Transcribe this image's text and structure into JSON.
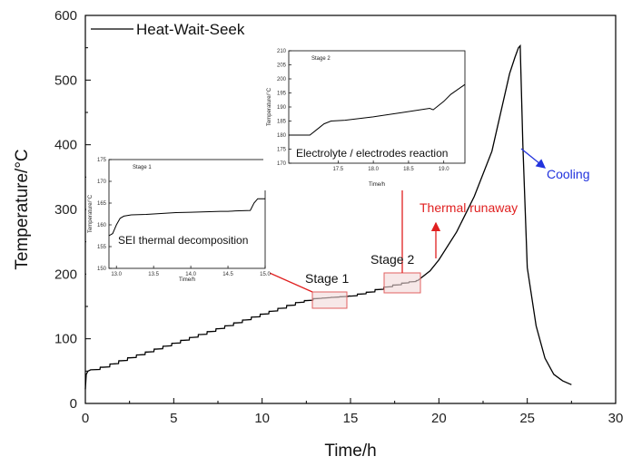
{
  "chart_data": {
    "type": "line",
    "xlabel": "Time/h",
    "ylabel": "Temperature/°C",
    "xlim": [
      0,
      30
    ],
    "ylim": [
      0,
      600
    ],
    "x_ticks": [
      0,
      5,
      10,
      15,
      20,
      25,
      30
    ],
    "y_ticks": [
      0,
      100,
      200,
      300,
      400,
      500,
      600
    ],
    "grid": false,
    "legend_position": "top-left",
    "series": [
      {
        "name": "Heat-Wait-Seek",
        "color": "#000000",
        "x": [
          0,
          0.05,
          0.15,
          0.3,
          1,
          2,
          3,
          4,
          5,
          6,
          7,
          8,
          9,
          10,
          11,
          12,
          13,
          14,
          15,
          16,
          17,
          18,
          18.8,
          19.5,
          20,
          21,
          22,
          23,
          23.5,
          24,
          24.3,
          24.5,
          24.6,
          24.75,
          25,
          25.5,
          26,
          26.5,
          27,
          27.5
        ],
        "y": [
          22,
          45,
          50,
          52,
          56,
          66,
          75,
          84,
          93,
          102,
          111,
          120,
          129,
          138,
          147,
          156,
          162,
          164,
          166,
          172,
          180,
          186,
          190,
          205,
          222,
          265,
          320,
          390,
          450,
          510,
          535,
          550,
          553,
          400,
          210,
          120,
          70,
          45,
          35,
          29
        ]
      }
    ],
    "annotations": {
      "stage1": "Stage 1",
      "stage2": "Stage 2",
      "thermal_runaway": "Thermal runaway",
      "cooling": "Cooling"
    },
    "insets": [
      {
        "title": "Stage 1",
        "label": "SEI thermal decomposition",
        "xlabel": "Time/h",
        "ylabel": "Temperature/°C",
        "xlim": [
          12.9,
          15.0
        ],
        "ylim": [
          150,
          175
        ],
        "x_ticks": [
          "13.0",
          "13.5",
          "14.0",
          "14.5",
          "15.0"
        ],
        "y_ticks": [
          "150",
          "155",
          "160",
          "165",
          "170",
          "175"
        ],
        "x": [
          12.9,
          12.95,
          13.0,
          13.05,
          13.1,
          13.2,
          13.4,
          13.6,
          13.8,
          14.0,
          14.2,
          14.4,
          14.5,
          14.6,
          14.8,
          14.85,
          14.9,
          15.0
        ],
        "y": [
          157.5,
          158,
          160,
          161.5,
          162,
          162.3,
          162.4,
          162.6,
          162.8,
          162.9,
          163.0,
          163.1,
          163.1,
          163.2,
          163.3,
          165,
          166,
          166
        ]
      },
      {
        "title": "Stage 2",
        "label": "Electrolyte / electrodes reaction",
        "xlabel": "Time/h",
        "ylabel": "Temperature/°C",
        "xlim": [
          16.8,
          19.3
        ],
        "ylim": [
          170,
          210
        ],
        "x_ticks": [
          "17.5",
          "18.0",
          "18.5",
          "19.0"
        ],
        "y_ticks": [
          "170",
          "175",
          "180",
          "185",
          "190",
          "195",
          "200",
          "205",
          "210"
        ],
        "x": [
          16.8,
          17.1,
          17.2,
          17.3,
          17.4,
          17.6,
          18.0,
          18.4,
          18.8,
          18.85,
          18.9,
          19.0,
          19.1,
          19.3
        ],
        "y": [
          180,
          180,
          182,
          184,
          185,
          185.3,
          186.5,
          188,
          189.5,
          189,
          190,
          192,
          194.5,
          198
        ]
      }
    ]
  }
}
